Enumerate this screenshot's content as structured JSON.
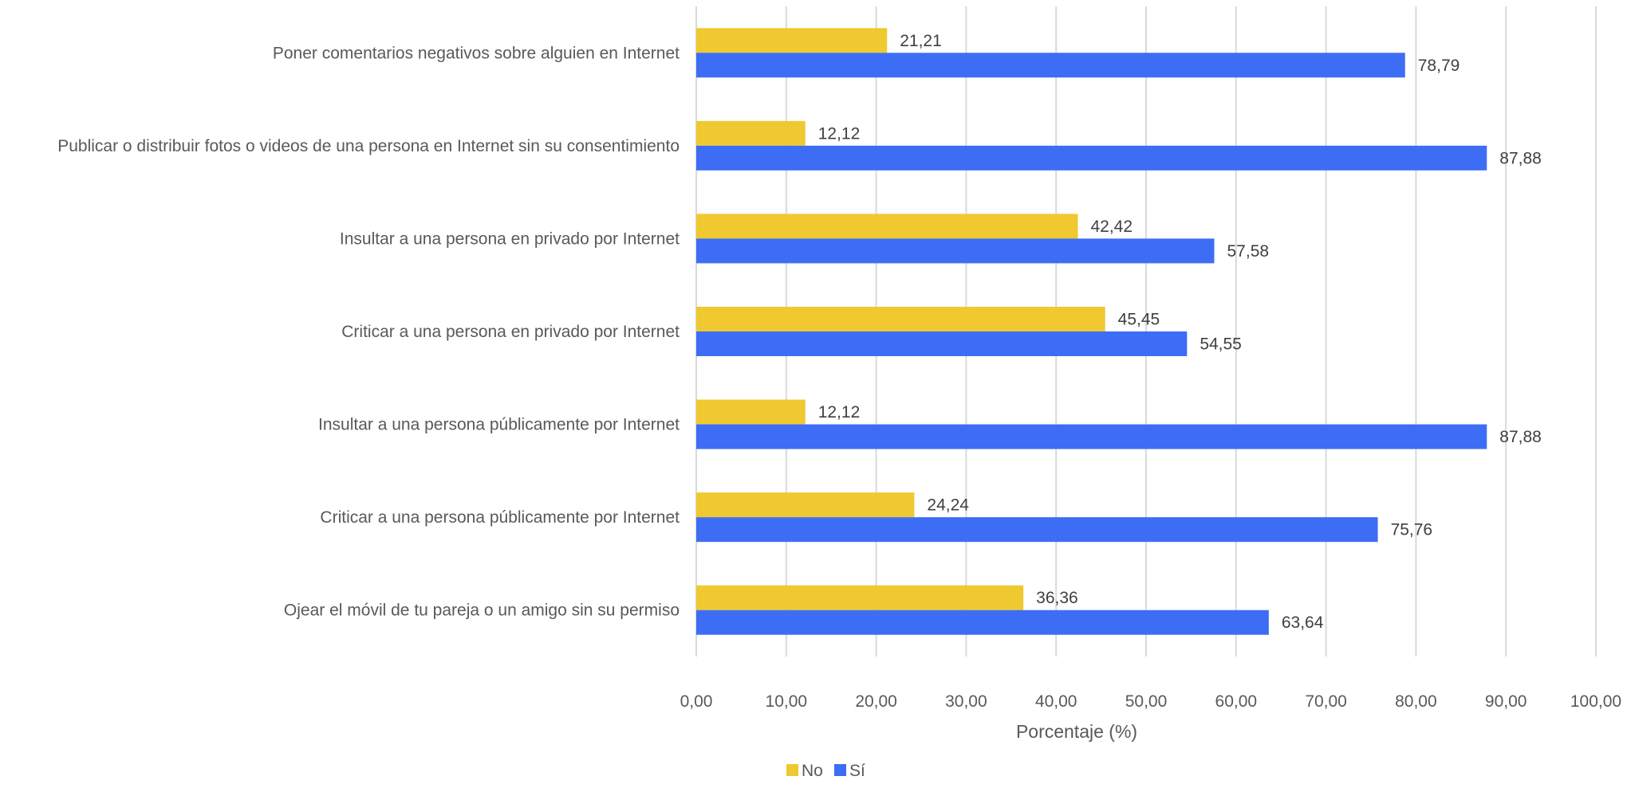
{
  "chart_data": {
    "type": "bar",
    "orientation": "horizontal",
    "categories": [
      "Poner comentarios negativos sobre alguien en Internet",
      "Publicar o distribuir fotos o videos de una persona en Internet sin su consentimiento",
      "Insultar a una persona en privado por Internet",
      "Criticar a una persona en privado por Internet",
      "Insultar a una persona públicamente por Internet",
      "Criticar a una persona públicamente por Internet",
      "Ojear el móvil de tu pareja o un amigo sin su permiso"
    ],
    "series": [
      {
        "name": "No",
        "color": "#EFC92F",
        "values": [
          21.21,
          12.12,
          42.42,
          45.45,
          12.12,
          24.24,
          36.36
        ],
        "labels": [
          "21,21",
          "12,12",
          "42,42",
          "45,45",
          "12,12",
          "24,24",
          "36,36"
        ]
      },
      {
        "name": "Sí",
        "color": "#3E6DF5",
        "values": [
          78.79,
          87.88,
          57.58,
          54.55,
          87.88,
          75.76,
          63.64
        ],
        "labels": [
          "78,79",
          "87,88",
          "57,58",
          "54,55",
          "87,88",
          "75,76",
          "63,64"
        ]
      }
    ],
    "xlabel": "Porcentaje (%)",
    "xlim": [
      0,
      100
    ],
    "xticks": [
      0,
      10,
      20,
      30,
      40,
      50,
      60,
      70,
      80,
      90,
      100
    ],
    "xtick_labels": [
      "0,00",
      "10,00",
      "20,00",
      "30,00",
      "40,00",
      "50,00",
      "60,00",
      "70,00",
      "80,00",
      "90,00",
      "100,00"
    ],
    "grid": true,
    "legend_position": "bottom"
  }
}
